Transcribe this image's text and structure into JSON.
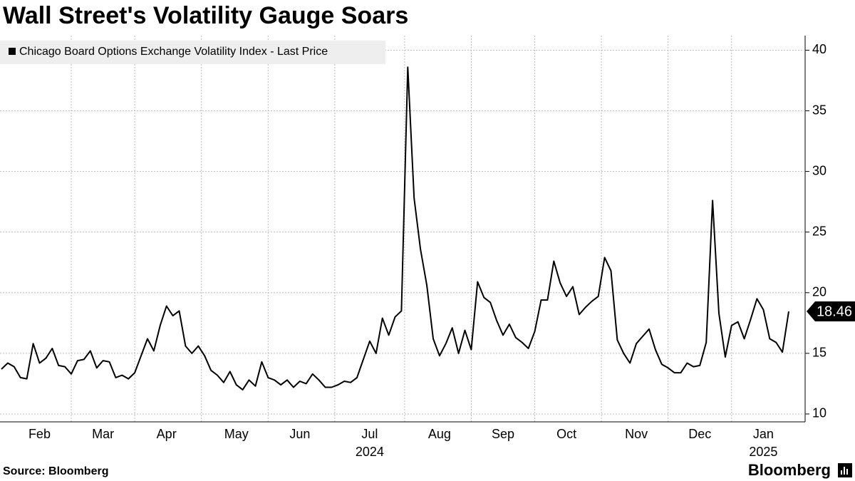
{
  "chart_data": {
    "type": "line",
    "title": "Wall Street's Volatility Gauge Soars",
    "source": "Source: Bloomberg",
    "logo": "Bloomberg",
    "legend": "bottom-left-inside",
    "grid": true,
    "categories": [
      null,
      null,
      null,
      null,
      null,
      null,
      "Feb",
      null,
      null,
      null,
      null,
      null,
      null,
      null,
      null,
      null,
      "Mar",
      null,
      null,
      null,
      null,
      null,
      null,
      null,
      null,
      null,
      "Apr",
      null,
      null,
      null,
      null,
      null,
      null,
      null,
      null,
      null,
      null,
      "May",
      null,
      null,
      null,
      null,
      null,
      null,
      null,
      null,
      null,
      "Jun",
      null,
      null,
      null,
      null,
      null,
      null,
      null,
      null,
      null,
      null,
      "Jul",
      null,
      null,
      null,
      null,
      null,
      null,
      null,
      null,
      null,
      null,
      "Aug",
      null,
      null,
      null,
      null,
      null,
      null,
      null,
      null,
      null,
      "Sep",
      null,
      null,
      null,
      null,
      null,
      null,
      null,
      null,
      null,
      "Oct",
      null,
      null,
      null,
      null,
      null,
      null,
      null,
      null,
      null,
      null,
      "Nov",
      null,
      null,
      null,
      null,
      null,
      null,
      null,
      null,
      null,
      "Dec",
      null,
      null,
      null,
      null,
      null,
      null,
      null,
      null,
      null,
      "Jan",
      null,
      null,
      null,
      null
    ],
    "category_years": [
      null,
      null,
      null,
      null,
      null,
      null,
      null,
      null,
      null,
      null,
      null,
      null,
      null,
      null,
      null,
      null,
      null,
      null,
      null,
      null,
      null,
      null,
      null,
      null,
      null,
      null,
      null,
      null,
      null,
      null,
      null,
      null,
      null,
      null,
      null,
      null,
      null,
      null,
      null,
      null,
      null,
      null,
      null,
      null,
      null,
      null,
      null,
      null,
      null,
      null,
      null,
      null,
      null,
      null,
      null,
      null,
      null,
      null,
      "2024",
      null,
      null,
      null,
      null,
      null,
      null,
      null,
      null,
      null,
      null,
      null,
      null,
      null,
      null,
      null,
      null,
      null,
      null,
      null,
      null,
      null,
      null,
      null,
      null,
      null,
      null,
      null,
      null,
      null,
      null,
      null,
      null,
      null,
      null,
      null,
      null,
      null,
      null,
      null,
      null,
      null,
      null,
      null,
      null,
      null,
      null,
      null,
      null,
      null,
      null,
      null,
      null,
      null,
      null,
      null,
      null,
      null,
      null,
      null,
      null,
      null,
      "2025",
      null,
      null,
      null,
      null
    ],
    "series": [
      {
        "name": "Chicago Board Options Exchange Volatility Index - Last Price",
        "color": "#000000",
        "values": [
          13.7,
          14.2,
          13.9,
          13.0,
          12.9,
          15.8,
          14.2,
          14.6,
          15.4,
          14.0,
          13.9,
          13.3,
          14.4,
          14.5,
          15.2,
          13.8,
          14.4,
          14.3,
          13.0,
          13.2,
          12.9,
          13.4,
          14.8,
          16.2,
          15.2,
          17.3,
          18.9,
          18.1,
          18.5,
          15.6,
          15.0,
          15.6,
          14.8,
          13.6,
          13.2,
          12.6,
          13.5,
          12.4,
          12.0,
          12.8,
          12.3,
          14.3,
          13.0,
          12.8,
          12.4,
          12.8,
          12.2,
          12.7,
          12.5,
          13.3,
          12.8,
          12.2,
          12.2,
          12.4,
          12.7,
          12.6,
          13.0,
          14.5,
          16.0,
          15.0,
          17.9,
          16.5,
          18.0,
          18.5,
          38.6,
          27.8,
          23.6,
          20.6,
          16.2,
          14.8,
          15.8,
          17.1,
          15.0,
          16.9,
          15.3,
          20.9,
          19.6,
          19.2,
          17.7,
          16.5,
          17.4,
          16.3,
          15.9,
          15.4,
          16.8,
          19.4,
          19.4,
          22.6,
          20.8,
          19.7,
          20.5,
          18.2,
          18.8,
          19.3,
          19.7,
          22.9,
          21.8,
          16.1,
          15.0,
          14.2,
          15.8,
          16.4,
          17.0,
          15.3,
          14.1,
          13.8,
          13.4,
          13.4,
          14.2,
          13.9,
          14.0,
          15.9,
          27.6,
          18.3,
          14.7,
          17.3,
          17.6,
          16.2,
          17.8,
          19.5,
          18.6,
          16.2,
          15.9,
          15.1,
          18.46
        ]
      }
    ],
    "ylim": [
      9.35,
      41.2
    ],
    "yticks": [
      10,
      15,
      20,
      25,
      30,
      35,
      40
    ]
  }
}
